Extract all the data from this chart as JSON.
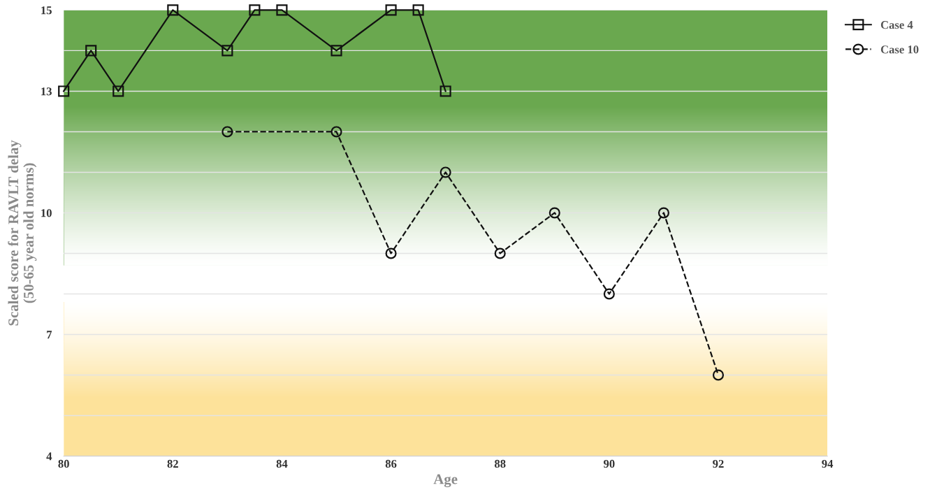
{
  "chart_data": {
    "type": "line",
    "xlabel": "Age",
    "ylabel": "Scaled score for RAVLT delay\n(50-65 year old norms)",
    "xlim": [
      80,
      94
    ],
    "xticks": [
      80,
      82,
      84,
      86,
      88,
      90,
      92,
      94
    ],
    "ylim": [
      4,
      15
    ],
    "yticks": [
      4,
      {
        "value": 5,
        "label": null
      },
      {
        "value": 6,
        "label": null
      },
      7,
      {
        "value": 8,
        "label": null
      },
      {
        "value": 9,
        "label": null
      },
      10,
      {
        "value": 11,
        "label": null
      },
      {
        "value": 12,
        "label": null
      },
      13,
      {
        "value": 14,
        "label": null
      },
      15
    ],
    "grid": "y",
    "legend": "top right",
    "bands": [
      {
        "axis": "y",
        "from": 8.7,
        "to": 15,
        "color": "#6aa84f"
      },
      {
        "axis": "y",
        "from": 7.8,
        "to": 4,
        "color": "#fde29a"
      }
    ],
    "series": [
      {
        "name": "Case 4",
        "color": "#111111",
        "marker": "square",
        "line_style": "solid",
        "x": [
          80,
          80.5,
          81,
          82,
          83,
          83.5,
          84,
          85,
          86,
          86.5,
          87
        ],
        "values": [
          13,
          14,
          13,
          15,
          14,
          15,
          15,
          14,
          15,
          15,
          13
        ]
      },
      {
        "name": "Case 10",
        "color": "#111111",
        "marker": "circle",
        "line_style": "dashed",
        "x": [
          83,
          85,
          86,
          87,
          88,
          89,
          90,
          91,
          92
        ],
        "values": [
          12,
          12,
          9,
          11,
          9,
          10,
          8,
          10,
          6
        ]
      }
    ]
  }
}
